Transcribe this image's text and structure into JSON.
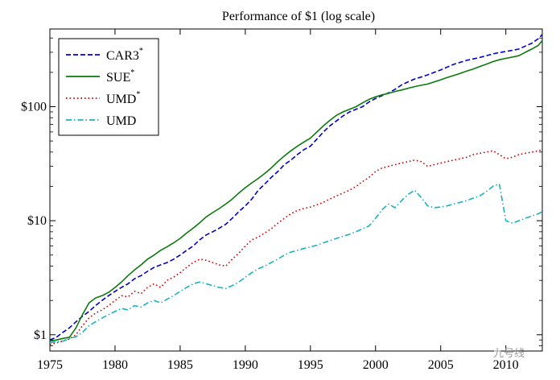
{
  "watermark": "九号线",
  "chart_data": {
    "type": "line",
    "title": "Performance of $1 (log scale)",
    "xlabel": "",
    "ylabel": "",
    "y_scale": "log",
    "xlim": [
      1975,
      2012.8
    ],
    "ylim": [
      0.72,
      480
    ],
    "x_ticks": [
      1975,
      1980,
      1985,
      1990,
      1995,
      2000,
      2005,
      2010
    ],
    "x_tick_labels": [
      "1975",
      "1980",
      "1985",
      "1990",
      "1995",
      "2000",
      "2005",
      "2010"
    ],
    "y_ticks": [
      1,
      10,
      100
    ],
    "y_tick_labels": [
      "$1",
      "$10",
      "$100"
    ],
    "grid": false,
    "legend_position": "top-left",
    "series": [
      {
        "name": "CAR3",
        "name_sup": "*",
        "color": "#0000cc",
        "dash": "dashed",
        "x": [
          1975,
          1975.5,
          1976,
          1976.5,
          1977,
          1977.5,
          1978,
          1978.5,
          1979,
          1979.5,
          1980,
          1980.5,
          1981,
          1981.5,
          1982,
          1982.5,
          1983,
          1983.5,
          1984,
          1984.5,
          1985,
          1985.5,
          1986,
          1986.5,
          1987,
          1987.5,
          1988,
          1988.5,
          1989,
          1989.5,
          1990,
          1990.5,
          1991,
          1991.5,
          1992,
          1992.5,
          1993,
          1993.5,
          1994,
          1994.5,
          1995,
          1995.5,
          1996,
          1996.5,
          1997,
          1997.5,
          1998,
          1998.5,
          1999,
          1999.5,
          2000,
          2000.5,
          2001,
          2001.5,
          2002,
          2002.5,
          2003,
          2003.5,
          2004,
          2004.5,
          2005,
          2005.5,
          2006,
          2006.5,
          2007,
          2007.5,
          2008,
          2008.5,
          2009,
          2009.5,
          2010,
          2010.5,
          2011,
          2011.5,
          2012,
          2012.5,
          2012.8
        ],
        "values": [
          0.9,
          0.95,
          1.05,
          1.15,
          1.3,
          1.45,
          1.6,
          1.8,
          2.0,
          2.2,
          2.4,
          2.6,
          2.8,
          3.1,
          3.3,
          3.6,
          3.9,
          4.1,
          4.3,
          4.6,
          5.0,
          5.5,
          6.0,
          6.8,
          7.5,
          8.0,
          8.6,
          9.3,
          10.5,
          12,
          13.5,
          15.5,
          18.5,
          21,
          24,
          27,
          31,
          34,
          38,
          42,
          45,
          52,
          60,
          68,
          75,
          83,
          90,
          95,
          100,
          110,
          118,
          125,
          132,
          142,
          155,
          165,
          175,
          182,
          190,
          200,
          210,
          222,
          235,
          245,
          255,
          262,
          270,
          280,
          290,
          298,
          305,
          312,
          320,
          340,
          360,
          395,
          430
        ]
      },
      {
        "name": "SUE",
        "name_sup": "*",
        "color": "#0a7a0a",
        "dash": "solid",
        "x": [
          1975,
          1975.5,
          1976,
          1976.5,
          1977,
          1977.5,
          1978,
          1978.5,
          1979,
          1979.5,
          1980,
          1980.5,
          1981,
          1981.5,
          1982,
          1982.5,
          1983,
          1983.5,
          1984,
          1984.5,
          1985,
          1985.5,
          1986,
          1986.5,
          1987,
          1987.5,
          1988,
          1988.5,
          1989,
          1989.5,
          1990,
          1990.5,
          1991,
          1991.5,
          1992,
          1992.5,
          1993,
          1993.5,
          1994,
          1994.5,
          1995,
          1995.5,
          1996,
          1996.5,
          1997,
          1997.5,
          1998,
          1998.5,
          1999,
          1999.5,
          2000,
          2000.5,
          2001,
          2001.5,
          2002,
          2002.5,
          2003,
          2003.5,
          2004,
          2004.5,
          2005,
          2005.5,
          2006,
          2006.5,
          2007,
          2007.5,
          2008,
          2008.5,
          2009,
          2009.5,
          2010,
          2010.5,
          2011,
          2011.5,
          2012,
          2012.5,
          2012.8
        ],
        "values": [
          0.88,
          0.9,
          0.93,
          0.95,
          1.15,
          1.5,
          1.9,
          2.1,
          2.2,
          2.35,
          2.6,
          2.9,
          3.3,
          3.7,
          4.1,
          4.6,
          5.0,
          5.5,
          5.9,
          6.4,
          7.0,
          7.8,
          8.6,
          9.6,
          10.8,
          11.8,
          12.8,
          14,
          15.5,
          17.5,
          19.5,
          21.5,
          23.5,
          26,
          29,
          33,
          37,
          41,
          45,
          49,
          53,
          60,
          68,
          76,
          84,
          90,
          95,
          100,
          108,
          116,
          122,
          127,
          131,
          136,
          140,
          145,
          150,
          154,
          158,
          165,
          172,
          180,
          188,
          196,
          205,
          214,
          225,
          236,
          248,
          258,
          265,
          272,
          280,
          300,
          320,
          345,
          380
        ]
      },
      {
        "name": "UMD",
        "name_sup": "*",
        "color": "#cc0000",
        "dash": "dotted",
        "x": [
          1975,
          1975.5,
          1976,
          1976.5,
          1977,
          1977.5,
          1978,
          1978.5,
          1979,
          1979.5,
          1980,
          1980.5,
          1981,
          1981.5,
          1982,
          1982.5,
          1983,
          1983.5,
          1984,
          1984.5,
          1985,
          1985.5,
          1986,
          1986.5,
          1987,
          1987.5,
          1988,
          1988.5,
          1989,
          1989.5,
          1990,
          1990.5,
          1991,
          1991.5,
          1992,
          1992.5,
          1993,
          1993.5,
          1994,
          1994.5,
          1995,
          1995.5,
          1996,
          1996.5,
          1997,
          1997.5,
          1998,
          1998.5,
          1999,
          1999.5,
          2000,
          2000.5,
          2001,
          2001.5,
          2002,
          2002.5,
          2003,
          2003.5,
          2004,
          2004.5,
          2005,
          2005.5,
          2006,
          2006.5,
          2007,
          2007.5,
          2008,
          2008.5,
          2009,
          2009.5,
          2010,
          2010.5,
          2011,
          2011.5,
          2012,
          2012.5,
          2012.8
        ],
        "values": [
          0.82,
          0.85,
          0.88,
          0.92,
          1.0,
          1.2,
          1.4,
          1.55,
          1.65,
          1.8,
          2.0,
          2.2,
          2.15,
          2.4,
          2.3,
          2.6,
          2.8,
          2.6,
          3.0,
          3.2,
          3.5,
          3.9,
          4.3,
          4.6,
          4.5,
          4.3,
          4.1,
          4.0,
          4.6,
          5.2,
          6.0,
          6.8,
          7.2,
          7.8,
          8.5,
          9.5,
          10.5,
          11.5,
          12.3,
          12.8,
          13.2,
          13.8,
          14.5,
          15.5,
          16.5,
          17.5,
          18.5,
          20,
          22,
          24,
          27,
          29,
          30,
          31,
          32,
          33,
          34,
          33,
          30,
          31,
          32,
          33,
          34,
          35,
          36,
          38,
          39,
          40,
          41,
          38,
          35,
          36,
          38,
          39,
          40,
          41,
          42
        ]
      },
      {
        "name": "UMD",
        "name_sup": "",
        "color": "#17b3c0",
        "dash": "dashdot",
        "x": [
          1975,
          1975.5,
          1976,
          1976.5,
          1977,
          1977.5,
          1978,
          1978.5,
          1979,
          1979.5,
          1980,
          1980.5,
          1981,
          1981.5,
          1982,
          1982.5,
          1983,
          1983.5,
          1984,
          1984.5,
          1985,
          1985.5,
          1986,
          1986.5,
          1987,
          1987.5,
          1988,
          1988.5,
          1989,
          1989.5,
          1990,
          1990.5,
          1991,
          1991.5,
          1992,
          1992.5,
          1993,
          1993.5,
          1994,
          1994.5,
          1995,
          1995.5,
          1996,
          1996.5,
          1997,
          1997.5,
          1998,
          1998.5,
          1999,
          1999.5,
          2000,
          2000.5,
          2001,
          2001.5,
          2002,
          2002.5,
          2003,
          2003.5,
          2004,
          2004.5,
          2005,
          2005.5,
          2006,
          2006.5,
          2007,
          2007.5,
          2008,
          2008.5,
          2009,
          2009.5,
          2010,
          2010.5,
          2011,
          2011.5,
          2012,
          2012.5,
          2012.8
        ],
        "values": [
          0.85,
          0.87,
          0.88,
          0.92,
          0.96,
          1.05,
          1.2,
          1.3,
          1.4,
          1.5,
          1.6,
          1.7,
          1.65,
          1.8,
          1.75,
          1.9,
          2.0,
          1.9,
          2.05,
          2.2,
          2.4,
          2.6,
          2.8,
          2.9,
          2.8,
          2.7,
          2.6,
          2.55,
          2.7,
          2.9,
          3.2,
          3.5,
          3.8,
          4.0,
          4.3,
          4.6,
          5.0,
          5.3,
          5.5,
          5.7,
          5.9,
          6.1,
          6.4,
          6.7,
          7.0,
          7.3,
          7.6,
          8.0,
          8.5,
          9.0,
          10.5,
          12.5,
          14,
          13,
          15,
          17,
          18.5,
          16,
          13.5,
          13.0,
          13.2,
          13.5,
          14,
          14.5,
          15,
          15.8,
          16.5,
          18,
          20,
          21,
          10,
          9.5,
          10,
          10.5,
          11,
          11.5,
          12
        ]
      }
    ]
  }
}
